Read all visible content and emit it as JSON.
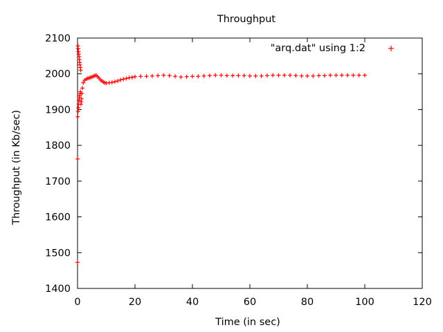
{
  "chart_data": {
    "type": "scatter",
    "title": "Throughput",
    "xlabel": "Time (in sec)",
    "ylabel": "Throughput (in Kb/sec)",
    "xlim": [
      0,
      120
    ],
    "ylim": [
      1400,
      2100
    ],
    "xticks": [
      0,
      20,
      40,
      60,
      80,
      100,
      120
    ],
    "yticks": [
      1400,
      1500,
      1600,
      1700,
      1800,
      1900,
      2000,
      2100
    ],
    "grid": false,
    "legend_position": "top-right",
    "series": [
      {
        "name": "\"arq.dat\" using 1:2",
        "color": "#ff0000",
        "marker": "plus",
        "points": [
          [
            0.0,
            1473
          ],
          [
            0.05,
            1762
          ],
          [
            0.1,
            1880
          ],
          [
            0.15,
            2078
          ],
          [
            0.2,
            1895
          ],
          [
            0.25,
            2070
          ],
          [
            0.3,
            1905
          ],
          [
            0.35,
            2062
          ],
          [
            0.4,
            1915
          ],
          [
            0.45,
            2055
          ],
          [
            0.5,
            1925
          ],
          [
            0.55,
            2048
          ],
          [
            0.6,
            1930
          ],
          [
            0.65,
            2040
          ],
          [
            0.7,
            1935
          ],
          [
            0.75,
            2032
          ],
          [
            0.8,
            1940
          ],
          [
            0.85,
            2025
          ],
          [
            0.9,
            1945
          ],
          [
            0.95,
            2018
          ],
          [
            1.0,
            1950
          ],
          [
            1.1,
            2010
          ],
          [
            1.2,
            1915
          ],
          [
            1.3,
            1922
          ],
          [
            1.4,
            1930
          ],
          [
            1.5,
            1945
          ],
          [
            1.7,
            1960
          ],
          [
            2.0,
            1975
          ],
          [
            2.5,
            1982
          ],
          [
            3.0,
            1985
          ],
          [
            3.5,
            1987
          ],
          [
            4.0,
            1988
          ],
          [
            4.5,
            1990
          ],
          [
            5.0,
            1991
          ],
          [
            5.5,
            1993
          ],
          [
            6.0,
            1995
          ],
          [
            6.5,
            1996
          ],
          [
            7.0,
            1992
          ],
          [
            7.5,
            1988
          ],
          [
            8.0,
            1983
          ],
          [
            8.5,
            1980
          ],
          [
            9.0,
            1977
          ],
          [
            9.5,
            1975
          ],
          [
            10.0,
            1974
          ],
          [
            11.0,
            1975
          ],
          [
            12.0,
            1976
          ],
          [
            13.0,
            1978
          ],
          [
            14.0,
            1980
          ],
          [
            15.0,
            1983
          ],
          [
            16.0,
            1985
          ],
          [
            17.0,
            1987
          ],
          [
            18.0,
            1989
          ],
          [
            19.0,
            1990
          ],
          [
            20.0,
            1992
          ],
          [
            22.0,
            1993
          ],
          [
            24.0,
            1993
          ],
          [
            26.0,
            1994
          ],
          [
            28.0,
            1995
          ],
          [
            30.0,
            1996
          ],
          [
            32.0,
            1995
          ],
          [
            34.0,
            1993
          ],
          [
            36.0,
            1991
          ],
          [
            38.0,
            1992
          ],
          [
            40.0,
            1993
          ],
          [
            42.0,
            1993
          ],
          [
            44.0,
            1994
          ],
          [
            46.0,
            1995
          ],
          [
            48.0,
            1996
          ],
          [
            50.0,
            1996
          ],
          [
            52.0,
            1995
          ],
          [
            54.0,
            1995
          ],
          [
            56.0,
            1995
          ],
          [
            58.0,
            1995
          ],
          [
            60.0,
            1994
          ],
          [
            62.0,
            1994
          ],
          [
            64.0,
            1994
          ],
          [
            66.0,
            1995
          ],
          [
            68.0,
            1996
          ],
          [
            70.0,
            1996
          ],
          [
            72.0,
            1996
          ],
          [
            74.0,
            1996
          ],
          [
            76.0,
            1995
          ],
          [
            78.0,
            1994
          ],
          [
            80.0,
            1994
          ],
          [
            82.0,
            1994
          ],
          [
            84.0,
            1995
          ],
          [
            86.0,
            1995
          ],
          [
            88.0,
            1996
          ],
          [
            90.0,
            1996
          ],
          [
            92.0,
            1996
          ],
          [
            94.0,
            1996
          ],
          [
            96.0,
            1996
          ],
          [
            98.0,
            1996
          ],
          [
            100.0,
            1996
          ]
        ]
      }
    ]
  }
}
